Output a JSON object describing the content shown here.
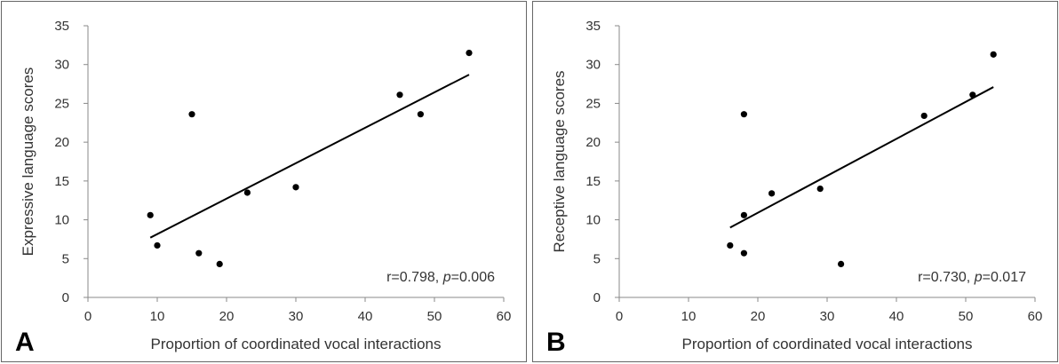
{
  "chart_data": [
    {
      "type": "scatter",
      "panel_label": "A",
      "xlabel": "Proportion of coordinated vocal interactions",
      "ylabel": "Expressive language scores",
      "xlim": [
        0,
        60
      ],
      "ylim": [
        0,
        35
      ],
      "xticks": [
        0,
        10,
        20,
        30,
        40,
        50,
        60
      ],
      "yticks": [
        0,
        5,
        10,
        15,
        20,
        25,
        30,
        35
      ],
      "grid": false,
      "points": [
        {
          "x": 9,
          "y": 10.6
        },
        {
          "x": 10,
          "y": 6.7
        },
        {
          "x": 15,
          "y": 23.6
        },
        {
          "x": 16,
          "y": 5.7
        },
        {
          "x": 19,
          "y": 4.3
        },
        {
          "x": 23,
          "y": 13.5
        },
        {
          "x": 30,
          "y": 14.2
        },
        {
          "x": 45,
          "y": 26.1
        },
        {
          "x": 48,
          "y": 23.6
        },
        {
          "x": 55,
          "y": 31.5
        }
      ],
      "trendline": {
        "x": [
          9,
          55
        ],
        "y": [
          7.7,
          28.7
        ]
      },
      "annotation": {
        "prefix": "r=0.798, ",
        "italic": "p",
        "suffix": "=0.006"
      }
    },
    {
      "type": "scatter",
      "panel_label": "B",
      "xlabel": "Proportion of coordinated vocal interactions",
      "ylabel": "Receptive language scores",
      "xlim": [
        0,
        60
      ],
      "ylim": [
        0,
        35
      ],
      "xticks": [
        0,
        10,
        20,
        30,
        40,
        50,
        60
      ],
      "yticks": [
        0,
        5,
        10,
        15,
        20,
        25,
        30,
        35
      ],
      "grid": false,
      "points": [
        {
          "x": 16,
          "y": 6.7
        },
        {
          "x": 18,
          "y": 23.6
        },
        {
          "x": 18,
          "y": 10.6
        },
        {
          "x": 18,
          "y": 5.7
        },
        {
          "x": 22,
          "y": 13.4
        },
        {
          "x": 29,
          "y": 14.0
        },
        {
          "x": 32,
          "y": 4.3
        },
        {
          "x": 44,
          "y": 23.4
        },
        {
          "x": 51,
          "y": 26.1
        },
        {
          "x": 54,
          "y": 31.3
        }
      ],
      "trendline": {
        "x": [
          16,
          54
        ],
        "y": [
          9.0,
          27.1
        ]
      },
      "annotation": {
        "prefix": "r=0.730, ",
        "italic": "p",
        "suffix": "=0.017"
      }
    }
  ]
}
